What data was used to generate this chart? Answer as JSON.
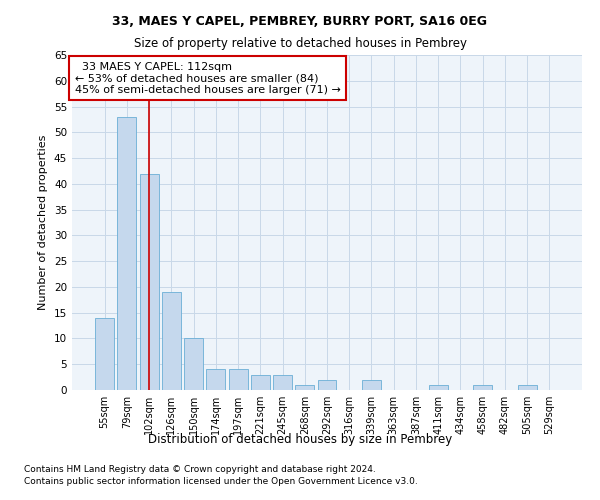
{
  "title1": "33, MAES Y CAPEL, PEMBREY, BURRY PORT, SA16 0EG",
  "title2": "Size of property relative to detached houses in Pembrey",
  "xlabel": "Distribution of detached houses by size in Pembrey",
  "ylabel": "Number of detached properties",
  "categories": [
    "55sqm",
    "79sqm",
    "102sqm",
    "126sqm",
    "150sqm",
    "174sqm",
    "197sqm",
    "221sqm",
    "245sqm",
    "268sqm",
    "292sqm",
    "316sqm",
    "339sqm",
    "363sqm",
    "387sqm",
    "411sqm",
    "434sqm",
    "458sqm",
    "482sqm",
    "505sqm",
    "529sqm"
  ],
  "values": [
    14,
    53,
    42,
    19,
    10,
    4,
    4,
    3,
    3,
    1,
    2,
    0,
    2,
    0,
    0,
    1,
    0,
    1,
    0,
    1,
    0
  ],
  "bar_color": "#c5d8ed",
  "bar_edge_color": "#6aafd6",
  "vline_x": 2,
  "vline_color": "#cc0000",
  "annotation_text": "  33 MAES Y CAPEL: 112sqm\n← 53% of detached houses are smaller (84)\n45% of semi-detached houses are larger (71) →",
  "annotation_box_color": "#ffffff",
  "annotation_box_edge": "#cc0000",
  "ylim": [
    0,
    65
  ],
  "yticks": [
    0,
    5,
    10,
    15,
    20,
    25,
    30,
    35,
    40,
    45,
    50,
    55,
    60,
    65
  ],
  "grid_color": "#c8d8e8",
  "bg_color": "#eef4fa",
  "footer1": "Contains HM Land Registry data © Crown copyright and database right 2024.",
  "footer2": "Contains public sector information licensed under the Open Government Licence v3.0."
}
